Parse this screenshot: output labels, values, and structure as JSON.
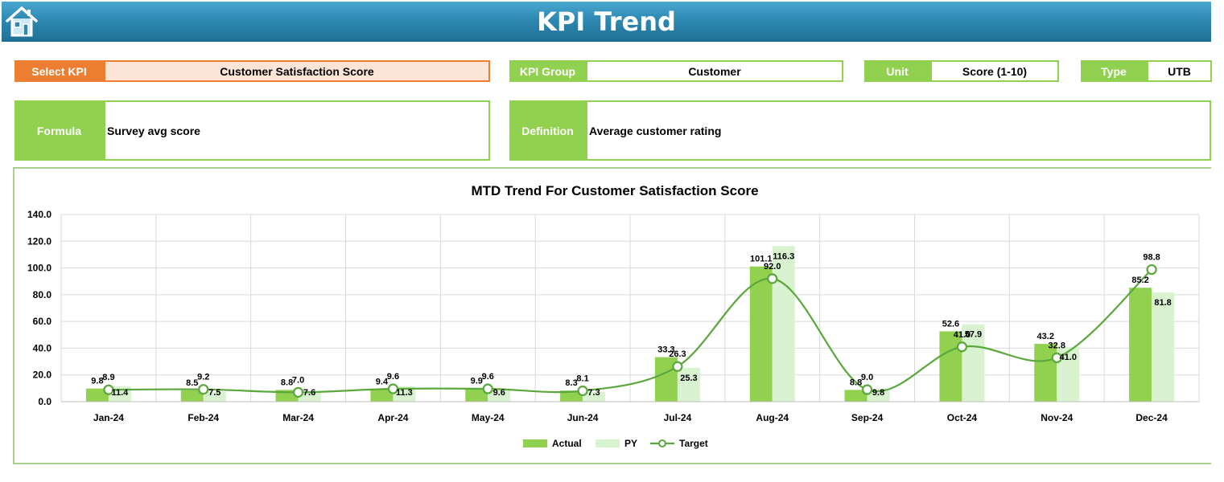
{
  "header": {
    "title": "KPI Trend",
    "home_icon": "home-icon"
  },
  "colors": {
    "accent_green": "#92d050",
    "select_orange": "#ed7d31",
    "title_blue": "#2d89b2",
    "actual": "#92d050",
    "py": "#d9f2d0",
    "target": "#5aa83c"
  },
  "fields": {
    "select_kpi": {
      "label": "Select KPI",
      "value": "Customer Satisfaction Score"
    },
    "kpi_group": {
      "label": "KPI Group",
      "value": "Customer"
    },
    "unit": {
      "label": "Unit",
      "value": "Score (1-10)"
    },
    "type": {
      "label": "Type",
      "value": "UTB"
    },
    "formula": {
      "label": "Formula",
      "value": "Survey avg score"
    },
    "definition": {
      "label": "Definition",
      "value": "Average customer rating"
    }
  },
  "chart_data": {
    "type": "bar",
    "title": "MTD Trend For Customer Satisfaction Score",
    "categories": [
      "Jan-24",
      "Feb-24",
      "Mar-24",
      "Apr-24",
      "May-24",
      "Jun-24",
      "Jul-24",
      "Aug-24",
      "Sep-24",
      "Oct-24",
      "Nov-24",
      "Dec-24"
    ],
    "series": [
      {
        "name": "Actual",
        "kind": "bar",
        "values": [
          9.8,
          8.5,
          8.8,
          9.4,
          9.9,
          8.3,
          33.3,
          101.1,
          8.8,
          52.6,
          43.2,
          85.2
        ]
      },
      {
        "name": "PY",
        "kind": "bar",
        "values": [
          11.4,
          7.5,
          7.6,
          11.3,
          9.6,
          7.3,
          25.3,
          116.3,
          9.8,
          57.9,
          41.0,
          81.8
        ]
      },
      {
        "name": "Target",
        "kind": "line",
        "values": [
          8.9,
          9.2,
          7.0,
          9.6,
          9.6,
          8.1,
          26.3,
          92.0,
          9.0,
          41.0,
          32.8,
          98.8
        ]
      }
    ],
    "ylim": [
      0,
      140
    ],
    "yticks": [
      "0.0",
      "20.0",
      "40.0",
      "60.0",
      "80.0",
      "100.0",
      "120.0",
      "140.0"
    ],
    "grid": true,
    "legend_position": "bottom"
  }
}
